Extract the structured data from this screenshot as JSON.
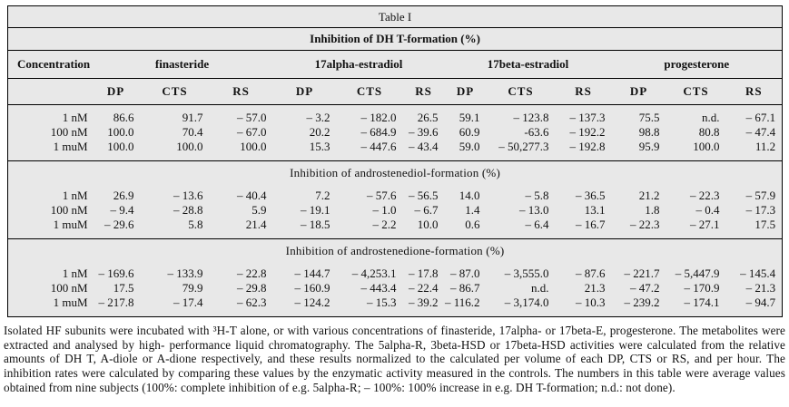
{
  "colors": {
    "page_bg": "#ffffff",
    "table_bg": "#e8e8e8",
    "border": "#000000",
    "text": "#111111"
  },
  "table": {
    "title": "Table I",
    "main_header": "Inhibition of DH T-formation (%)",
    "concentration_label": "Concentration",
    "drugs": [
      "finasteride",
      "17alpha-estradiol",
      "17beta-estradiol",
      "progesterone"
    ],
    "subcols": [
      "DP",
      "CTS",
      "RS"
    ],
    "sections": [
      {
        "header": null,
        "rows": [
          {
            "conc": "1 nM",
            "values": [
              "86.6",
              "91.7",
              "– 57.0",
              "– 3.2",
              "– 182.0",
              "26.5",
              "59.1",
              "– 123.8",
              "– 137.3",
              "75.5",
              "n.d.",
              "– 67.1"
            ]
          },
          {
            "conc": "100 nM",
            "values": [
              "100.0",
              "70.4",
              "– 67.0",
              "20.2",
              "– 684.9",
              "– 39.6",
              "60.9",
              "-63.6",
              "– 192.2",
              "98.8",
              "80.8",
              "– 47.4"
            ]
          },
          {
            "conc": "1 muM",
            "values": [
              "100.0",
              "100.0",
              "100.0",
              "15.3",
              "– 447.6",
              "– 43.4",
              "59.0",
              "– 50,277.3",
              "– 192.8",
              "95.9",
              "100.0",
              "11.2"
            ]
          }
        ]
      },
      {
        "header": "Inhibition of androstenediol-formation (%)",
        "rows": [
          {
            "conc": "1 nM",
            "values": [
              "26.9",
              "– 13.6",
              "– 40.4",
              "7.2",
              "– 57.6",
              "– 56.5",
              "14.0",
              "– 5.8",
              "– 36.5",
              "21.2",
              "– 22.3",
              "– 57.9"
            ]
          },
          {
            "conc": "100 nM",
            "values": [
              "– 9.4",
              "– 28.8",
              "5.9",
              "– 19.1",
              "– 1.0",
              "– 6.7",
              "1.4",
              "– 13.0",
              "13.1",
              "1.8",
              "– 0.4",
              "– 17.3"
            ]
          },
          {
            "conc": "1 muM",
            "values": [
              "– 29.6",
              "5.8",
              "21.4",
              "– 18.5",
              "– 2.2",
              "10.0",
              "0.6",
              "– 6.4",
              "– 16.7",
              "– 22.3",
              "– 27.1",
              "17.5"
            ]
          }
        ]
      },
      {
        "header": "Inhibition of androstenedione-formation (%)",
        "rows": [
          {
            "conc": "1 nM",
            "values": [
              "– 169.6",
              "– 133.9",
              "– 22.8",
              "– 144.7",
              "– 4,253.1",
              "– 17.8",
              "– 87.0",
              "– 3,555.0",
              "– 87.6",
              "– 221.7",
              "– 5,447.9",
              "– 145.4"
            ]
          },
          {
            "conc": "100 nM",
            "values": [
              "17.5",
              "79.9",
              "– 29.8",
              "– 160.9",
              "– 443.4",
              "– 22.4",
              "– 86.7",
              "n.d.",
              "21.3",
              "– 47.2",
              "– 170.9",
              "– 21.3"
            ]
          },
          {
            "conc": "1 muM",
            "values": [
              "– 217.8",
              "– 17.4",
              "– 62.3",
              "– 124.2",
              "– 15.3",
              "– 39.2",
              "– 116.2",
              "– 3,174.0",
              "– 10.3",
              "– 239.2",
              "– 174.1",
              "– 94.7"
            ]
          }
        ]
      }
    ]
  },
  "footnote": "Isolated HF subunits were incubated with ³H-T alone, or with various concentrations of finasteride, 17alpha- or 17beta-E, progesterone. The metabolites were extracted and analysed by high- performance liquid chromatography. The 5alpha-R, 3beta-HSD or 17beta-HSD activities were calculated from the relative amounts of DH T, A-diole or A-dione respectively, and these results normalized to the calculated per volume of each DP, CTS or RS, and per hour. The inhibition rates were calculated by comparing these values by the enzymatic activity measured in the controls. The numbers in this table were average values obtained from nine subjects (100%: complete inhibition of e.g. 5alpha-R; – 100%: 100% increase in e.g. DH T-formation; n.d.: not done)."
}
